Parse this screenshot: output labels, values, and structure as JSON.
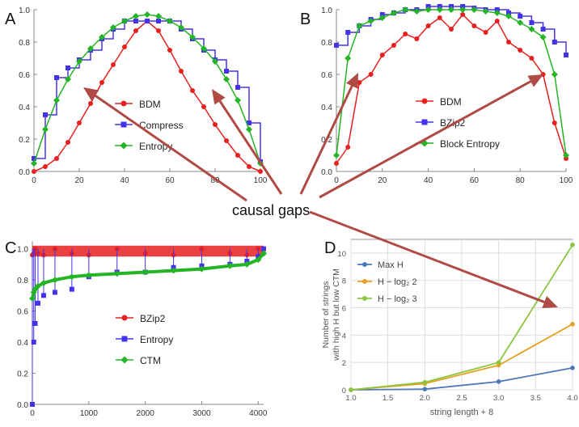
{
  "callout": {
    "label": "causal gaps",
    "arrow_color": "#b04a44"
  },
  "chart_data": [
    {
      "panel": "A",
      "type": "line",
      "x": [
        0,
        5,
        10,
        15,
        20,
        25,
        30,
        35,
        40,
        45,
        50,
        55,
        60,
        65,
        70,
        75,
        80,
        85,
        90,
        95,
        100
      ],
      "ylim": [
        0,
        1.0
      ],
      "xlim": [
        0,
        100
      ],
      "xticks": [
        "0",
        "20",
        "40",
        "60",
        "80",
        "100"
      ],
      "yticks": [
        "0.0",
        "0.2",
        "0.4",
        "0.6",
        "0.8",
        "1.0"
      ],
      "grid": false,
      "legend_position": "center",
      "series": [
        {
          "name": "BDM",
          "color": "#e8201f",
          "marker": "circle",
          "values": [
            0.0,
            0.03,
            0.08,
            0.18,
            0.3,
            0.42,
            0.55,
            0.66,
            0.77,
            0.87,
            0.93,
            0.87,
            0.75,
            0.62,
            0.5,
            0.4,
            0.29,
            0.19,
            0.1,
            0.03,
            0.0
          ]
        },
        {
          "name": "Compress",
          "color": "#4433ee",
          "marker": "square",
          "values": [
            0.08,
            0.35,
            0.58,
            0.64,
            0.69,
            0.75,
            0.82,
            0.88,
            0.93,
            0.93,
            0.93,
            0.93,
            0.93,
            0.88,
            0.82,
            0.75,
            0.69,
            0.62,
            0.52,
            0.3,
            0.06
          ]
        },
        {
          "name": "Entropy",
          "color": "#23b523",
          "marker": "diamond",
          "values": [
            0.05,
            0.26,
            0.44,
            0.57,
            0.68,
            0.76,
            0.83,
            0.89,
            0.93,
            0.96,
            0.97,
            0.96,
            0.93,
            0.89,
            0.83,
            0.76,
            0.68,
            0.57,
            0.44,
            0.26,
            0.05
          ]
        }
      ]
    },
    {
      "panel": "B",
      "type": "line",
      "x": [
        0,
        5,
        10,
        15,
        20,
        25,
        30,
        35,
        40,
        45,
        50,
        55,
        60,
        65,
        70,
        75,
        80,
        85,
        90,
        95,
        100
      ],
      "ylim": [
        0,
        1.0
      ],
      "xlim": [
        0,
        100
      ],
      "xticks": [
        "0",
        "20",
        "40",
        "60",
        "80",
        "100"
      ],
      "yticks": [
        "0.0",
        "0.2",
        "0.4",
        "0.6",
        "0.8",
        "1.0"
      ],
      "grid": false,
      "legend_position": "center",
      "series": [
        {
          "name": "BDM",
          "color": "#e8201f",
          "marker": "circle",
          "values": [
            0.05,
            0.15,
            0.55,
            0.6,
            0.72,
            0.78,
            0.85,
            0.82,
            0.9,
            0.95,
            0.88,
            0.97,
            0.9,
            0.86,
            0.93,
            0.8,
            0.75,
            0.7,
            0.6,
            0.3,
            0.08
          ]
        },
        {
          "name": "BZip2",
          "color": "#4433ee",
          "marker": "square",
          "values": [
            0.78,
            0.86,
            0.9,
            0.94,
            0.97,
            0.98,
            1.0,
            1.0,
            1.02,
            1.02,
            1.02,
            1.02,
            1.01,
            1.0,
            1.0,
            0.98,
            0.96,
            0.92,
            0.88,
            0.8,
            0.72
          ]
        },
        {
          "name": "Block Entropy",
          "color": "#23b523",
          "marker": "diamond",
          "values": [
            0.1,
            0.7,
            0.9,
            0.93,
            0.95,
            0.98,
            1.0,
            0.99,
            1.0,
            1.0,
            1.0,
            1.0,
            1.0,
            0.99,
            0.98,
            0.96,
            0.92,
            0.88,
            0.83,
            0.6,
            0.1
          ]
        }
      ]
    },
    {
      "panel": "C",
      "type": "scatter",
      "x": [
        0,
        25,
        50,
        100,
        200,
        400,
        700,
        1000,
        1500,
        2000,
        2500,
        3000,
        3500,
        3800,
        4000,
        4096
      ],
      "ylim": [
        0,
        1.05
      ],
      "xlim": [
        0,
        4096
      ],
      "xticks": [
        "0",
        "1000",
        "2000",
        "3000",
        "4000"
      ],
      "yticks": [
        "0.0",
        "0.2",
        "0.4",
        "0.6",
        "0.8",
        "1.0"
      ],
      "grid": false,
      "legend_position": "center",
      "series": [
        {
          "name": "BZip2",
          "color": "#e8201f",
          "marker": "circle",
          "values": [
            0.96,
            0.97,
            1.0,
            0.97,
            0.96,
            1.0,
            0.97,
            0.96,
            1.0,
            0.97,
            0.96,
            1.0,
            0.97,
            0.96,
            1.0,
            0.97
          ]
        },
        {
          "name": "Entropy",
          "color": "#4433ee",
          "marker": "square",
          "values": [
            0.0,
            0.4,
            0.52,
            0.65,
            0.7,
            0.72,
            0.74,
            0.82,
            0.85,
            0.85,
            0.88,
            0.89,
            0.9,
            0.92,
            0.95,
            1.0
          ]
        },
        {
          "name": "CTM",
          "color": "#23b523",
          "marker": "diamond",
          "values": [
            0.68,
            0.72,
            0.74,
            0.76,
            0.78,
            0.8,
            0.82,
            0.83,
            0.84,
            0.85,
            0.86,
            0.87,
            0.89,
            0.9,
            0.93,
            0.97
          ]
        }
      ]
    },
    {
      "panel": "D",
      "type": "line",
      "x": [
        1.0,
        2.0,
        3.0,
        4.0
      ],
      "xlim": [
        1.0,
        4.0
      ],
      "ylim": [
        0,
        11
      ],
      "xticks": [
        "1.0",
        "1.5",
        "2.0",
        "2.5",
        "3.0",
        "3.5",
        "4.0"
      ],
      "yticks": [
        "0",
        "2",
        "4",
        "6",
        "8",
        "10"
      ],
      "xlabel": "string length + 8",
      "ylabel": "Number of strings with high H but low CTM",
      "grid": true,
      "legend_position": "top-left",
      "series": [
        {
          "name": "Max H",
          "color": "#4a78b8",
          "marker": "circle",
          "values": [
            0,
            0.05,
            0.6,
            1.6
          ]
        },
        {
          "name": "H − log₂ 2",
          "color": "#e8a020",
          "marker": "circle",
          "values": [
            0,
            0.45,
            1.8,
            4.8
          ]
        },
        {
          "name": "H − log₂ 3",
          "color": "#8cc63f",
          "marker": "circle",
          "values": [
            0,
            0.55,
            2.0,
            10.6
          ]
        }
      ]
    }
  ]
}
